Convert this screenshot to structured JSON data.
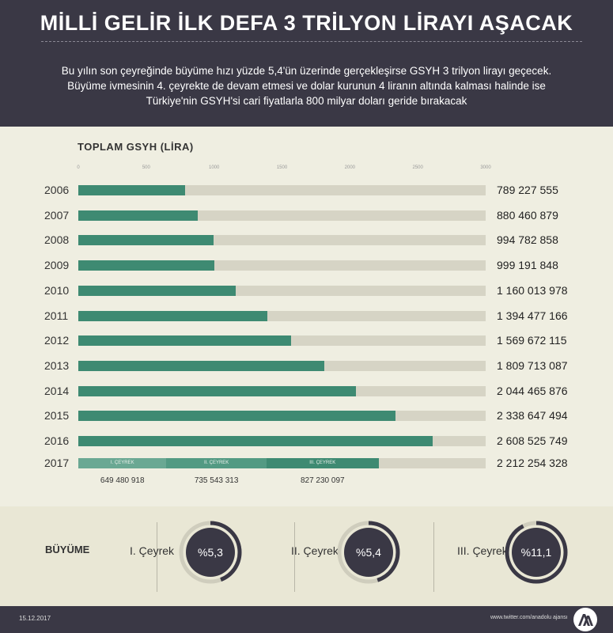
{
  "header": {
    "title": "MİLLİ GELİR İLK DEFA 3 TRİLYON LİRAYI AŞACAK",
    "subtitle_lines": [
      "Bu yılın son çeyreğinde büyüme hızı yüzde 5,4'ün üzerinde gerçekleşirse GSYH 3 trilyon lirayı geçecek.",
      "Büyüme ivmesinin 4. çeyrekte de devam etmesi ve dolar kurunun 4 liranın altında kalması halinde ise",
      "Türkiye'nin GSYH'si cari fiyatlarla 800 milyar doları geride bırakacak"
    ]
  },
  "chart_data": {
    "type": "bar",
    "title": "TOPLAM GSYH (LİRA)",
    "orientation": "horizontal",
    "xlim": [
      0,
      3000
    ],
    "x_ticks": [
      "0",
      "500",
      "1000",
      "1500",
      "2000",
      "2500",
      "3000"
    ],
    "categories": [
      "2006",
      "2007",
      "2008",
      "2009",
      "2010",
      "2011",
      "2012",
      "2013",
      "2014",
      "2015",
      "2016"
    ],
    "values": [
      789227555,
      880460879,
      994782858,
      999191848,
      1160013978,
      1394477166,
      1569672115,
      1809713087,
      2044465876,
      2338647494,
      2608525749
    ],
    "value_labels": [
      "789 227 555",
      "880 460 879",
      "994 782 858",
      "999 191 848",
      "1 160 013 978",
      "1 394 477 166",
      "1 569 672 115",
      "1 809 713 087",
      "2 044 465 876",
      "2 338 647 494",
      "2 608 525 749"
    ],
    "stacked_2017": {
      "year": "2017",
      "total_label": "2 212 254 328",
      "quarters": [
        {
          "name": "I. ÇEYREK",
          "value": 649480918,
          "label": "649 480 918"
        },
        {
          "name": "II. ÇEYREK",
          "value": 735543313,
          "label": "735 543 313"
        },
        {
          "name": "III. ÇEYREK",
          "value": 827230097,
          "label": "827 230 097"
        }
      ]
    }
  },
  "growth": {
    "label": "BÜYÜME",
    "items": [
      {
        "quarter": "I. Çeyrek",
        "value": "%5,3",
        "rate": 5.3
      },
      {
        "quarter": "II. Çeyrek",
        "value": "%5,4",
        "rate": 5.4
      },
      {
        "quarter": "III. Çeyrek",
        "value": "%11,1",
        "rate": 11.1
      }
    ]
  },
  "footer": {
    "date": "15.12.2017",
    "twitter": "www.twitter.com/anadolu ajansı",
    "logo_text": "AA"
  },
  "colors": {
    "header_bg": "#3a3845",
    "bar_fill": "#3e8a72",
    "bar_track": "#d6d4c5",
    "q1": "#6aa893",
    "q2": "#539a83",
    "q3": "#3e8a72"
  }
}
